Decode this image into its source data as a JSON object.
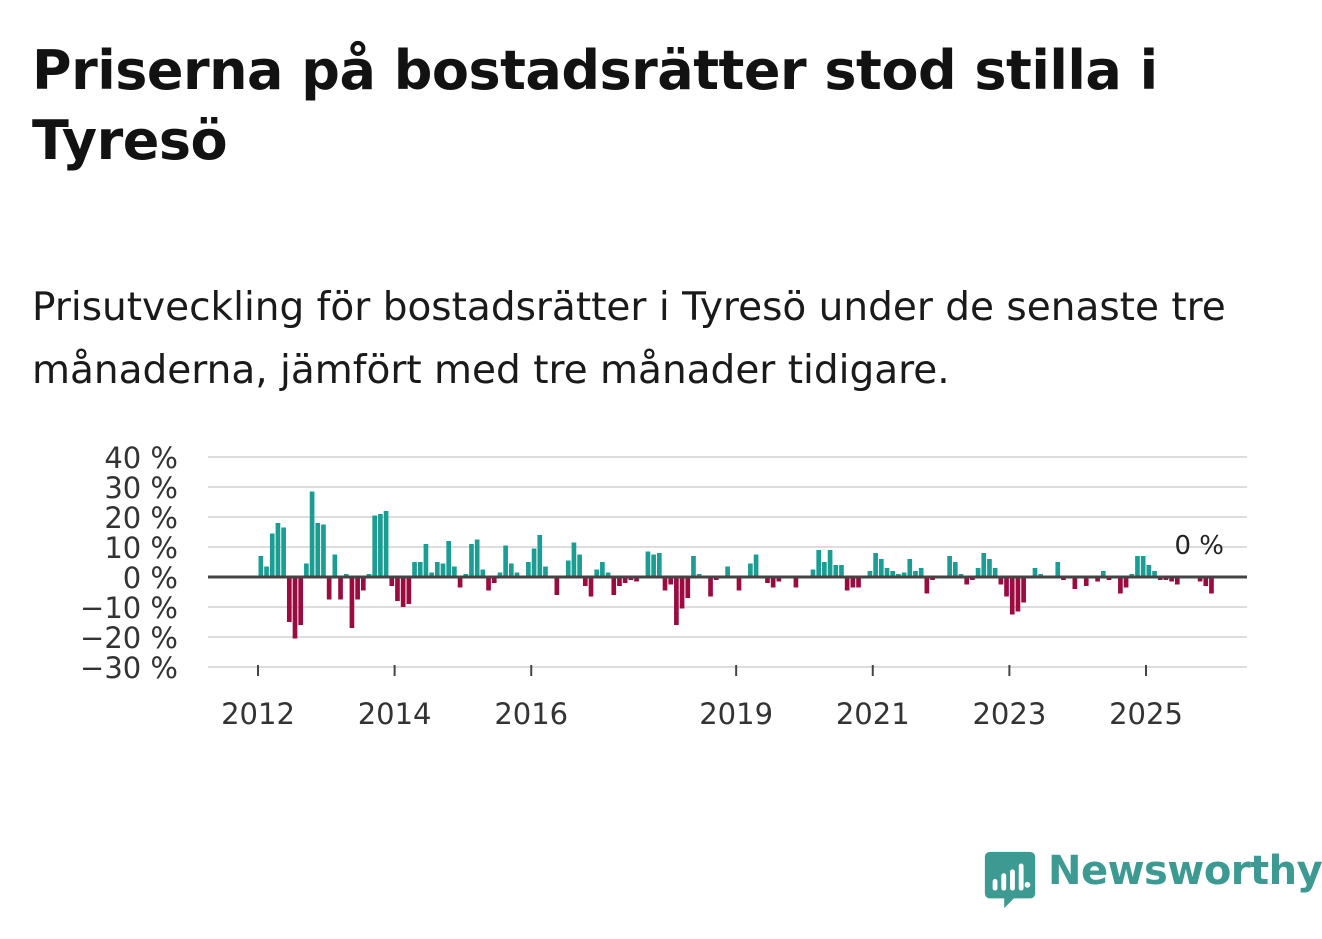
{
  "title": "Priserna på bostadsrätter stod stilla i Tyresö",
  "subtitle": "Prisutveckling för bostadsrätter i Tyresö under de senaste tre månaderna, jämfört med tre månader tidigare.",
  "brand": {
    "name": "Newsworthy",
    "color": "#3d9a93"
  },
  "colors": {
    "positive": "#1a9e93",
    "negative": "#9b0b40",
    "zero_line": "#444444",
    "grid": "#dddddd"
  },
  "chart_data": {
    "type": "bar",
    "title": "Priserna på bostadsrätter stod stilla i Tyresö",
    "xlabel": "",
    "ylabel": "",
    "ylim": [
      -30,
      40
    ],
    "y_ticks": [
      40,
      30,
      20,
      10,
      0,
      -10,
      -20,
      -30
    ],
    "y_tick_labels": [
      "40 %",
      "30 %",
      "20 %",
      "10 %",
      "0 %",
      "−10 %",
      "−20 %",
      "−30 %"
    ],
    "x_tick_labels": [
      {
        "label": "2012",
        "year": 2012
      },
      {
        "label": "2014",
        "year": 2014
      },
      {
        "label": "2016",
        "year": 2016
      },
      {
        "label": "2019",
        "year": 2019
      },
      {
        "label": "2021",
        "year": 2021
      },
      {
        "label": "2023",
        "year": 2023
      },
      {
        "label": "2025",
        "year": 2025
      }
    ],
    "start": "2012-01",
    "unit": "%",
    "last_value_label": "0 %",
    "values": [
      7,
      3.5,
      14.5,
      18,
      16.5,
      -15,
      -20.5,
      -16,
      4.5,
      28.5,
      18,
      17.5,
      -7.5,
      7.5,
      -7.5,
      1,
      -17,
      -7.5,
      -4.5,
      1,
      20.5,
      21,
      22,
      -3,
      -8,
      -10,
      -9,
      5,
      5,
      11,
      1.5,
      5,
      4.5,
      12,
      3.5,
      -3.5,
      1,
      11,
      12.5,
      2.5,
      -4.5,
      -2,
      1.5,
      10.5,
      4.5,
      1.5,
      0,
      5,
      9.5,
      14,
      3.5,
      0,
      -6,
      0,
      5.5,
      11.5,
      7.5,
      -3,
      -6.5,
      2.5,
      5,
      1.5,
      -6,
      -3,
      -2,
      -1,
      -1.5,
      -0.5,
      8.5,
      7.5,
      8,
      -4.5,
      -2.5,
      -16,
      -10.5,
      -7,
      7,
      1,
      0,
      -6.5,
      -1,
      -0.5,
      3.5,
      0,
      -4.5,
      0.5,
      4.5,
      7.5,
      0,
      -2,
      -3.5,
      -1.5,
      0,
      0,
      -3.5,
      0,
      0.5,
      2.5,
      9,
      5,
      9,
      4,
      4,
      -4.5,
      -3.5,
      -3.5,
      0.5,
      2,
      8,
      6,
      3,
      2,
      1,
      1.5,
      6,
      2,
      3,
      -5.5,
      -1,
      0,
      0,
      7,
      5,
      1,
      -2.5,
      -1,
      3,
      8,
      6,
      3,
      -2.5,
      -6.5,
      -12.5,
      -11.5,
      -8.5,
      0,
      3,
      1,
      0,
      0,
      5,
      -1,
      0,
      -4,
      0.5,
      -3,
      0,
      -1.5,
      2,
      -1,
      0.5,
      -5.5,
      -3.5,
      1,
      7,
      7,
      4,
      2,
      -1,
      -1,
      -1.5,
      -2.5,
      -0.5,
      -0.5,
      -0.5,
      -1.5,
      -3,
      -5.5,
      -0.5
    ]
  }
}
